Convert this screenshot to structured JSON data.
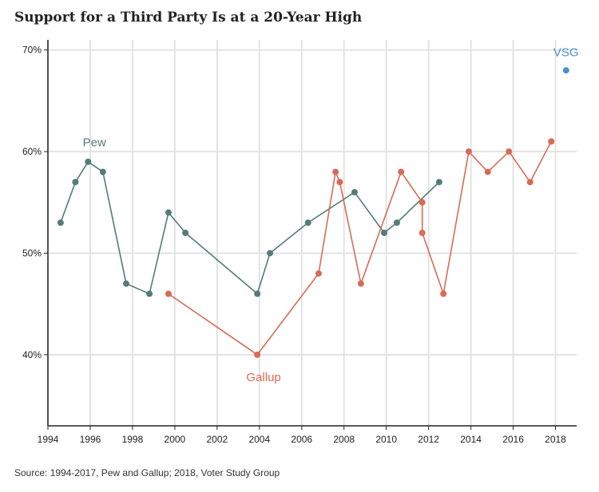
{
  "title": "Support for a Third Party Is at a 20-Year High",
  "source": "Source: 1994-2017, Pew and Gallup; 2018, Voter Study Group",
  "chart_data": {
    "type": "line",
    "title": "Support for a Third Party Is at a 20-Year High",
    "xlabel": "",
    "ylabel": "",
    "xlim": [
      1994,
      2019
    ],
    "ylim": [
      33,
      71
    ],
    "x_ticks": [
      1994,
      1996,
      1998,
      2000,
      2002,
      2004,
      2006,
      2008,
      2010,
      2012,
      2014,
      2016,
      2018
    ],
    "y_ticks": [
      40,
      50,
      60,
      70
    ],
    "y_tick_labels": [
      "40%",
      "50%",
      "60%",
      "70%"
    ],
    "grid": true,
    "series": [
      {
        "name": "Pew",
        "color": "#547c78",
        "line": true,
        "points": [
          [
            1994.6,
            53
          ],
          [
            1995.3,
            57
          ],
          [
            1995.9,
            59
          ],
          [
            1996.6,
            58
          ],
          [
            1997.7,
            47
          ],
          [
            1998.8,
            46
          ],
          [
            1999.7,
            54
          ],
          [
            2000.5,
            52
          ],
          [
            2003.9,
            46
          ],
          [
            2004.5,
            50
          ],
          [
            2006.3,
            53
          ],
          [
            2008.5,
            56
          ],
          [
            2009.9,
            52
          ],
          [
            2010.5,
            53
          ],
          [
            2012.5,
            57
          ]
        ]
      },
      {
        "name": "Gallup",
        "color": "#d86b57",
        "line": true,
        "points": [
          [
            1999.7,
            46
          ],
          [
            2003.9,
            40
          ],
          [
            2006.8,
            48
          ],
          [
            2007.6,
            58
          ],
          [
            2007.8,
            57
          ],
          [
            2008.8,
            47
          ],
          [
            2010.7,
            58
          ],
          [
            2011.7,
            55
          ],
          [
            2011.7,
            52
          ],
          [
            2012.7,
            46
          ],
          [
            2013.9,
            60
          ],
          [
            2014.8,
            58
          ],
          [
            2015.8,
            60
          ],
          [
            2016.8,
            57
          ],
          [
            2017.8,
            61
          ]
        ]
      },
      {
        "name": "VSG",
        "color": "#4a90d9",
        "line": false,
        "points": [
          [
            2018.5,
            68
          ]
        ]
      }
    ]
  }
}
